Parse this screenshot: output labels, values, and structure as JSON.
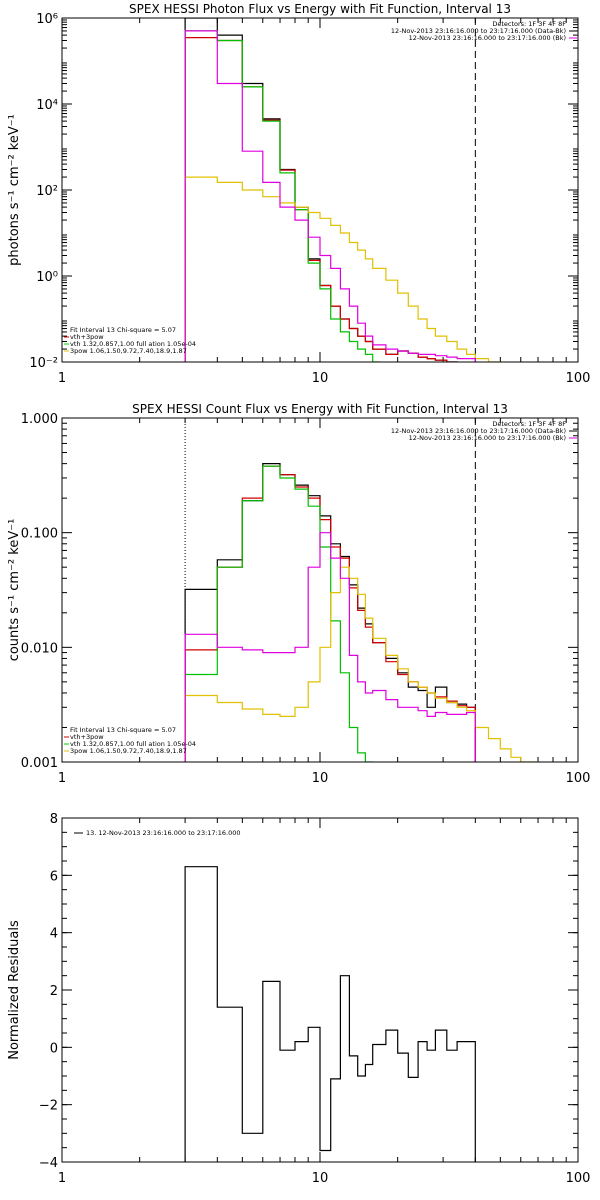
{
  "chart_data": [
    {
      "type": "line",
      "title": "SPEX HESSI Photon Flux vs Energy with Fit Function, Interval 13",
      "ylabel": "photons s⁻¹ cm⁻² keV⁻¹",
      "xlabel": "",
      "x_scale": "log",
      "y_scale": "log",
      "xlim": [
        1,
        100
      ],
      "ylim": [
        0.01,
        1000000
      ],
      "x_ticks": [
        {
          "value": 1,
          "label": "1"
        },
        {
          "value": 10,
          "label": "10"
        },
        {
          "value": 100,
          "label": "100"
        }
      ],
      "y_ticks": [
        {
          "value": 1000000,
          "label": "10⁶"
        },
        {
          "value": 10000,
          "label": "10⁴"
        },
        {
          "value": 100,
          "label": "10²"
        },
        {
          "value": 1,
          "label": "10⁰"
        },
        {
          "value": 0.01,
          "label": "10⁻²"
        }
      ],
      "vlines": [
        {
          "x": 3.0,
          "style": "dotted"
        },
        {
          "x": 40.0,
          "style": "dashed"
        }
      ],
      "legend_top_right": [
        {
          "text": "Detectors: 1F 3F 4F 8F",
          "color": "#000000"
        },
        {
          "text": "12-Nov-2013 23:16:16.000 to 23:17:16.000 (Data-Bk)",
          "color": "#000000",
          "swatch": "#000000"
        },
        {
          "text": "12-Nov-2013 23:16:16.000 to 23:17:16.000 (Bk)",
          "color": "#000000",
          "swatch": "#e000e0"
        }
      ],
      "legend_bottom_left": [
        {
          "text": "Fit Interval 13   Chi-square = 5.07",
          "color": "#000000"
        },
        {
          "text": "vth+3pow",
          "color": "#000000",
          "swatch": "#d00000"
        },
        {
          "text": "vth 1.32,0.857,1.00  full ation 1.05e-04",
          "color": "#000000",
          "swatch": "#00d000"
        },
        {
          "text": "3pow 1.06,1.50,9.72,7.40,18.9,1.87",
          "color": "#000000",
          "swatch": "#e0c000"
        }
      ],
      "series": [
        {
          "name": "12-Nov-2013 23:16:16.000 to 23:17:16.000 (Data-Bk)",
          "color": "#000000",
          "edges": [
            3,
            4,
            5,
            6,
            7,
            8,
            9,
            10,
            11,
            12,
            13,
            14,
            15,
            16,
            18,
            20,
            22,
            24,
            26,
            28,
            31,
            34,
            37,
            40
          ],
          "values": [
            1000000,
            400000,
            30000,
            4500,
            300,
            40,
            2.5,
            0.6,
            0.2,
            0.1,
            0.06,
            0.04,
            0.03,
            0.02,
            0.015,
            0.018,
            0.016,
            0.013,
            0.012,
            0.011,
            0.01,
            0.009,
            0.009
          ]
        },
        {
          "name": "vth+3pow",
          "color": "#d00000",
          "edges": [
            3,
            4,
            5,
            6,
            7,
            8,
            9,
            10,
            11,
            12,
            13,
            14,
            15,
            16,
            18,
            20,
            22,
            24,
            26,
            28,
            31,
            34,
            37,
            40
          ],
          "values": [
            350000,
            300000,
            25000,
            4200,
            290,
            35,
            2.3,
            0.6,
            0.2,
            0.1,
            0.06,
            0.04,
            0.03,
            0.02,
            0.015,
            0.018,
            0.016,
            0.013,
            0.012,
            0.011,
            0.01,
            0.009,
            0.009
          ]
        },
        {
          "name": "vth",
          "color": "#00c000",
          "edges": [
            3,
            4,
            5,
            6,
            7,
            8,
            9,
            10,
            11,
            12,
            13,
            14,
            15,
            16,
            17
          ],
          "values": [
            500000,
            300000,
            25000,
            4000,
            250,
            35,
            2.0,
            0.5,
            0.1,
            0.05,
            0.03,
            0.02,
            0.015,
            0.01
          ]
        },
        {
          "name": "3pow",
          "color": "#e0c000",
          "edges": [
            3,
            4,
            5,
            6,
            7,
            8,
            9,
            10,
            11,
            12,
            13,
            14,
            15,
            16,
            18,
            20,
            22,
            24,
            26,
            28,
            31,
            34,
            37,
            40,
            45,
            50,
            55,
            60
          ],
          "values": [
            200,
            150,
            100,
            70,
            50,
            40,
            30,
            22,
            15,
            10,
            6,
            4,
            2.5,
            1.5,
            0.8,
            0.4,
            0.2,
            0.1,
            0.06,
            0.04,
            0.03,
            0.02,
            0.015,
            0.012,
            0.01,
            0.009,
            0.008
          ]
        },
        {
          "name": "12-Nov-2013 23:16:16.000 to 23:17:16.000 (Bk)",
          "color": "#e000e0",
          "edges": [
            3,
            4,
            5,
            6,
            7,
            8,
            9,
            10,
            11,
            12,
            13,
            14,
            15,
            16,
            18,
            20,
            22,
            24,
            26,
            28,
            31,
            34,
            37,
            40
          ],
          "values": [
            500000,
            30000,
            800,
            150,
            40,
            20,
            8,
            3,
            1.5,
            0.5,
            0.2,
            0.08,
            0.04,
            0.025,
            0.02,
            0.018,
            0.016,
            0.015,
            0.015,
            0.014,
            0.013,
            0.012,
            0.012
          ]
        }
      ]
    },
    {
      "type": "line",
      "title": "SPEX HESSI Count Flux vs Energy with Fit Function, Interval 13",
      "ylabel": "counts s⁻¹ cm⁻² keV⁻¹",
      "xlabel": "",
      "x_scale": "log",
      "y_scale": "log",
      "xlim": [
        1,
        100
      ],
      "ylim": [
        0.001,
        1
      ],
      "x_ticks": [
        {
          "value": 1,
          "label": "1"
        },
        {
          "value": 10,
          "label": "10"
        },
        {
          "value": 100,
          "label": "100"
        }
      ],
      "y_ticks": [
        {
          "value": 1,
          "label": "1.000"
        },
        {
          "value": 0.1,
          "label": "0.100"
        },
        {
          "value": 0.01,
          "label": "0.010"
        },
        {
          "value": 0.001,
          "label": "0.001"
        }
      ],
      "vlines": [
        {
          "x": 3.0,
          "style": "dotted"
        },
        {
          "x": 40.0,
          "style": "dashed"
        }
      ],
      "legend_top_right": [
        {
          "text": "Detectors: 1F 3F 4F 8F",
          "color": "#000000"
        },
        {
          "text": "12-Nov-2013 23:16:16.000 to 23:17:16.000 (Data-Bk)",
          "color": "#000000",
          "swatch": "#000000"
        },
        {
          "text": "12-Nov-2013 23:16:16.000 to 23:17:16.000 (Bk)",
          "color": "#000000",
          "swatch": "#e000e0"
        }
      ],
      "legend_bottom_left": [
        {
          "text": "Fit Interval 13   Chi-square = 5.07",
          "color": "#000000"
        },
        {
          "text": "vth+3pow",
          "color": "#000000",
          "swatch": "#d00000"
        },
        {
          "text": "vth 1.32,0.857,1.00  full ation 1.05e-04",
          "color": "#000000",
          "swatch": "#00d000"
        },
        {
          "text": "3pow 1.06,1.50,9.72,7.40,18.9,1.87",
          "color": "#000000",
          "swatch": "#e0c000"
        }
      ],
      "series": [
        {
          "name": "12-Nov-2013 23:16:16.000 to 23:17:16.000 (Data-Bk)",
          "color": "#000000",
          "edges": [
            3,
            4,
            5,
            6,
            7,
            8,
            9,
            10,
            11,
            12,
            13,
            14,
            15,
            16,
            18,
            20,
            22,
            24,
            26,
            28,
            31,
            34,
            37,
            40
          ],
          "values": [
            0.032,
            0.058,
            0.19,
            0.4,
            0.32,
            0.26,
            0.21,
            0.14,
            0.08,
            0.062,
            0.035,
            0.022,
            0.016,
            0.011,
            0.008,
            0.006,
            0.0045,
            0.0042,
            0.003,
            0.0045,
            0.0033,
            0.0032,
            0.003
          ]
        },
        {
          "name": "vth+3pow",
          "color": "#d00000",
          "edges": [
            3,
            4,
            5,
            6,
            7,
            8,
            9,
            10,
            11,
            12,
            13,
            14,
            15,
            16,
            18,
            20,
            22,
            24,
            26,
            28,
            31,
            34,
            37,
            40
          ],
          "values": [
            0.0095,
            0.05,
            0.2,
            0.38,
            0.32,
            0.25,
            0.2,
            0.13,
            0.075,
            0.06,
            0.033,
            0.021,
            0.015,
            0.011,
            0.0075,
            0.0058,
            0.005,
            0.0045,
            0.004,
            0.0037,
            0.0034,
            0.0031,
            0.003
          ]
        },
        {
          "name": "vth",
          "color": "#00c000",
          "edges": [
            3,
            4,
            5,
            6,
            7,
            8,
            9,
            10,
            11,
            12,
            13,
            14,
            15,
            16
          ],
          "values": [
            0.0058,
            0.05,
            0.19,
            0.38,
            0.3,
            0.24,
            0.17,
            0.075,
            0.017,
            0.006,
            0.002,
            0.0012,
            0.001
          ]
        },
        {
          "name": "3pow",
          "color": "#e0c000",
          "edges": [
            3,
            4,
            5,
            6,
            7,
            8,
            9,
            10,
            11,
            12,
            13,
            14,
            15,
            16,
            18,
            20,
            22,
            24,
            26,
            28,
            31,
            34,
            37,
            40,
            45,
            50,
            55,
            60,
            70,
            80
          ],
          "values": [
            0.0038,
            0.0033,
            0.0029,
            0.0026,
            0.0025,
            0.003,
            0.005,
            0.01,
            0.03,
            0.05,
            0.04,
            0.029,
            0.018,
            0.012,
            0.0085,
            0.0065,
            0.005,
            0.0045,
            0.004,
            0.0036,
            0.0033,
            0.003,
            0.0028,
            0.002,
            0.0016,
            0.0013,
            0.0011,
            0.001,
            0.0008
          ]
        },
        {
          "name": "12-Nov-2013 23:16:16.000 to 23:17:16.000 (Bk)",
          "color": "#e000e0",
          "edges": [
            3,
            4,
            5,
            6,
            7,
            8,
            9,
            10,
            11,
            12,
            13,
            14,
            15,
            16,
            18,
            20,
            22,
            24,
            26,
            28,
            31,
            34,
            37,
            40
          ],
          "values": [
            0.013,
            0.01,
            0.0095,
            0.009,
            0.009,
            0.01,
            0.05,
            0.1,
            0.06,
            0.04,
            0.0085,
            0.005,
            0.004,
            0.0042,
            0.0035,
            0.003,
            0.003,
            0.0028,
            0.0025,
            0.0027,
            0.0026,
            0.0026,
            0.0027
          ]
        }
      ]
    },
    {
      "type": "line",
      "title": "",
      "ylabel": "Normalized Residuals",
      "xlabel": "",
      "x_scale": "log",
      "y_scale": "linear",
      "xlim": [
        1,
        100
      ],
      "ylim": [
        -4,
        8
      ],
      "x_ticks": [
        {
          "value": 1,
          "label": "1"
        },
        {
          "value": 10,
          "label": "10"
        },
        {
          "value": 100,
          "label": "100"
        }
      ],
      "y_ticks": [
        {
          "value": 8,
          "label": "8"
        },
        {
          "value": 6,
          "label": "6"
        },
        {
          "value": 4,
          "label": "4"
        },
        {
          "value": 2,
          "label": "2"
        },
        {
          "value": 0,
          "label": "0"
        },
        {
          "value": -2,
          "label": "−2"
        },
        {
          "value": -4,
          "label": "−4"
        }
      ],
      "legend_top_left": [
        {
          "text": "13. 12-Nov-2013 23:16:16.000 to 23:17:16.000",
          "color": "#000000",
          "swatch": "#000000"
        }
      ],
      "series": [
        {
          "name": "13. 12-Nov-2013 23:16:16.000 to 23:17:16.000",
          "color": "#000000",
          "edges": [
            3,
            4,
            5,
            6,
            7,
            8,
            9,
            10,
            11,
            12,
            13,
            14,
            15,
            16,
            18,
            20,
            22,
            24,
            26,
            28,
            31,
            34,
            37,
            40
          ],
          "values": [
            6.3,
            1.4,
            -3.0,
            2.3,
            -0.1,
            0.2,
            0.7,
            -3.6,
            -1.1,
            2.5,
            -0.3,
            -1.0,
            -0.6,
            0.1,
            0.6,
            -0.2,
            -1.05,
            0.2,
            -0.1,
            0.6,
            -0.1,
            0.2,
            0.2
          ],
          "drop_to": -4
        }
      ]
    }
  ]
}
